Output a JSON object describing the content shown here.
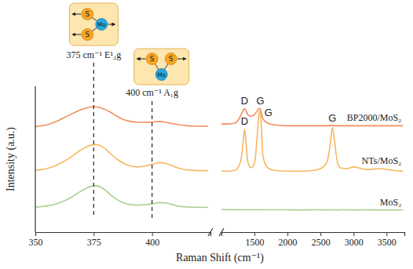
{
  "chart_data": [
    {
      "type": "line",
      "x_label": "Raman Shift (cm⁻¹)",
      "y_label": "Intensity (a.u.)",
      "tick_labels": "x",
      "xlim": [
        350,
        425
      ],
      "xticks": [
        350,
        375,
        400
      ],
      "ylim": [
        0,
        8.5
      ],
      "x": [
        350,
        353,
        356,
        359,
        362,
        365,
        368,
        371,
        374,
        376,
        379,
        382,
        385,
        388,
        391,
        394,
        397,
        400,
        403,
        406,
        409,
        412,
        415,
        418,
        421,
        424
      ],
      "series": [
        {
          "color": "#f28e5c",
          "values": [
            6.15,
            6.2,
            6.3,
            6.45,
            6.65,
            6.85,
            7.05,
            7.2,
            7.3,
            7.3,
            7.2,
            7.0,
            6.75,
            6.55,
            6.45,
            6.4,
            6.4,
            6.42,
            6.45,
            6.4,
            6.32,
            6.25,
            6.2,
            6.18,
            6.17,
            6.17
          ]
        },
        {
          "color": "#f5b860",
          "values": [
            3.6,
            3.65,
            3.75,
            3.9,
            4.1,
            4.35,
            4.65,
            4.9,
            5.08,
            5.1,
            4.95,
            4.6,
            4.25,
            4.0,
            3.85,
            3.8,
            3.85,
            3.95,
            4.05,
            4.0,
            3.85,
            3.7,
            3.62,
            3.6,
            3.58,
            3.58
          ]
        },
        {
          "color": "#a8cf8e",
          "values": [
            1.45,
            1.5,
            1.55,
            1.65,
            1.8,
            2.0,
            2.25,
            2.5,
            2.68,
            2.7,
            2.55,
            2.2,
            1.9,
            1.7,
            1.6,
            1.58,
            1.6,
            1.65,
            1.72,
            1.7,
            1.6,
            1.5,
            1.47,
            1.45,
            1.45,
            1.44
          ]
        }
      ],
      "annotations": [
        {
          "text": "375 cm⁻¹ E¹₂g",
          "x": 375,
          "atoms": [
            "S",
            "S",
            "Mo"
          ]
        },
        {
          "text": "400 cm⁻¹ A₁g",
          "x": 400,
          "atoms": [
            "S",
            "S",
            "Mo"
          ]
        }
      ]
    },
    {
      "type": "line",
      "tick_labels": "x",
      "xlim": [
        1000,
        3770
      ],
      "xticks": [
        1500,
        2000,
        2500,
        3000,
        3500
      ],
      "ylim": [
        0,
        8.5
      ],
      "x": [
        1000,
        1100,
        1200,
        1250,
        1300,
        1330,
        1350,
        1370,
        1400,
        1450,
        1500,
        1540,
        1570,
        1585,
        1600,
        1630,
        1700,
        1800,
        2000,
        2200,
        2400,
        2500,
        2600,
        2650,
        2680,
        2710,
        2750,
        2800,
        2900,
        3000,
        3200,
        3400,
        3600,
        3750
      ],
      "series": [
        {
          "name": "BP2000/MoS₂",
          "color": "#f28e5c",
          "values": [
            6.3,
            6.3,
            6.35,
            6.5,
            6.85,
            7.1,
            7.2,
            7.1,
            6.85,
            6.75,
            6.85,
            7.05,
            7.2,
            7.2,
            7.0,
            6.6,
            6.35,
            6.25,
            6.2,
            6.2,
            6.2,
            6.2,
            6.2,
            6.22,
            6.22,
            6.2,
            6.2,
            6.2,
            6.2,
            6.2,
            6.2,
            6.2,
            6.2,
            6.2
          ]
        },
        {
          "name": "NTs/MoS₂",
          "color": "#f5b860",
          "values": [
            3.55,
            3.55,
            3.6,
            3.75,
            4.3,
            5.3,
            6.0,
            5.3,
            4.1,
            3.75,
            4.0,
            5.5,
            6.9,
            7.1,
            6.5,
            4.4,
            3.75,
            3.6,
            3.55,
            3.55,
            3.6,
            3.7,
            4.1,
            5.2,
            6.1,
            5.4,
            4.2,
            3.75,
            3.7,
            3.8,
            3.65,
            3.7,
            3.6,
            3.55
          ]
        },
        {
          "name": "MoS₂",
          "color": "#a8cf8e",
          "values": [
            1.32,
            1.31,
            1.3,
            1.31,
            1.3,
            1.3,
            1.31,
            1.3,
            1.3,
            1.3,
            1.31,
            1.3,
            1.3,
            1.31,
            1.3,
            1.3,
            1.3,
            1.3,
            1.3,
            1.29,
            1.3,
            1.3,
            1.29,
            1.3,
            1.3,
            1.3,
            1.29,
            1.3,
            1.3,
            1.29,
            1.3,
            1.29,
            1.29,
            1.3
          ]
        }
      ],
      "annotations": [
        {
          "text": "D",
          "x": 1350,
          "y": 7.45
        },
        {
          "text": "G",
          "x": 1590,
          "y": 7.45
        },
        {
          "text": "D",
          "x": 1350,
          "y": 6.28
        },
        {
          "text": "G",
          "x": 1650,
          "y": 6.75
        },
        {
          "text": "G",
          "x": 2680,
          "y": 6.45
        }
      ]
    }
  ]
}
